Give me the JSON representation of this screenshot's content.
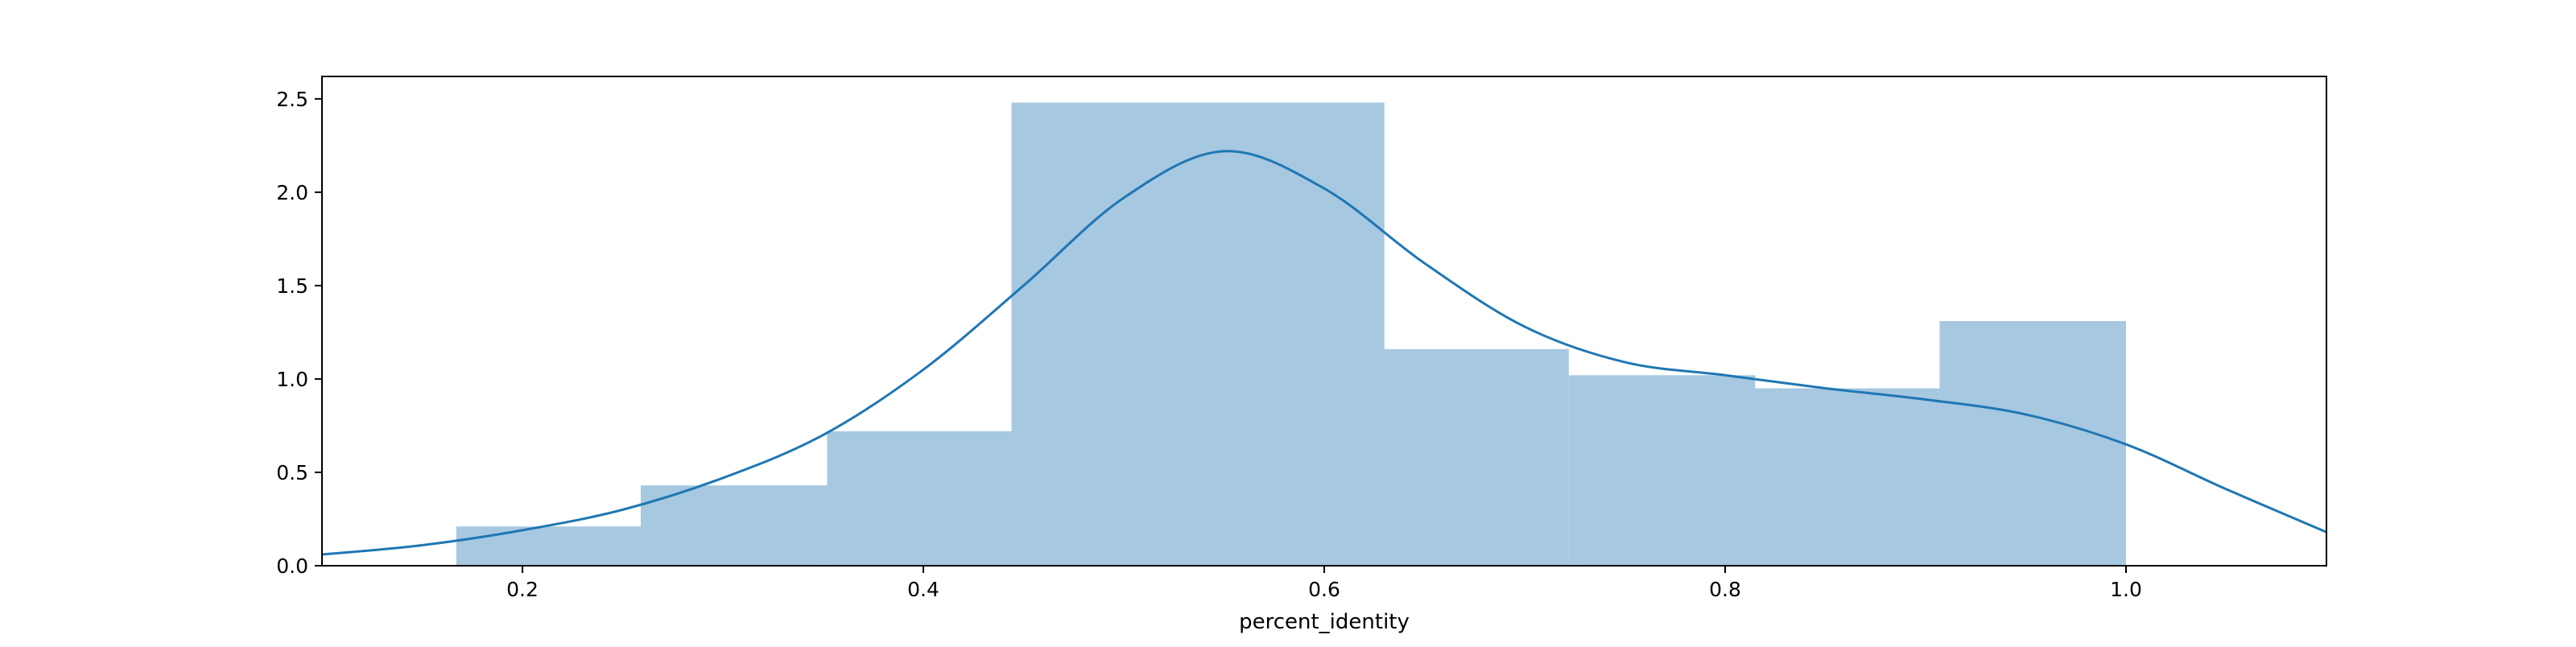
{
  "chart_data": {
    "type": "bar",
    "title": "",
    "xlabel": "percent_identity",
    "ylabel": "",
    "xlim": [
      0.1,
      1.1
    ],
    "ylim": [
      0,
      2.62
    ],
    "x_ticks": [
      0.2,
      0.4,
      0.6,
      0.8,
      1.0
    ],
    "x_tick_labels": [
      "0.2",
      "0.4",
      "0.6",
      "0.8",
      "1.0"
    ],
    "y_ticks": [
      0,
      0.5,
      1.0,
      1.5,
      2.0,
      2.5
    ],
    "y_tick_labels": [
      "0.0",
      "0.5",
      "1.0",
      "1.5",
      "2.0",
      "2.5"
    ],
    "grid": false,
    "legend": "none",
    "histogram": {
      "bin_edges": [
        0.167,
        0.259,
        0.352,
        0.444,
        0.63,
        0.722,
        0.815,
        0.907,
        1.0
      ],
      "values": [
        0.21,
        0.43,
        0.72,
        2.48,
        1.16,
        1.02,
        0.95,
        1.31
      ],
      "color": "#a6c8e0"
    },
    "kde": {
      "color": "#1f77b4",
      "x": [
        0.1,
        0.15,
        0.2,
        0.25,
        0.3,
        0.35,
        0.4,
        0.45,
        0.5,
        0.55,
        0.6,
        0.65,
        0.7,
        0.75,
        0.8,
        0.85,
        0.9,
        0.95,
        1.0,
        1.05,
        1.1
      ],
      "y": [
        0.06,
        0.11,
        0.19,
        0.3,
        0.47,
        0.7,
        1.05,
        1.5,
        1.97,
        2.22,
        2.02,
        1.62,
        1.28,
        1.09,
        1.02,
        0.95,
        0.89,
        0.81,
        0.65,
        0.41,
        0.18
      ]
    }
  }
}
